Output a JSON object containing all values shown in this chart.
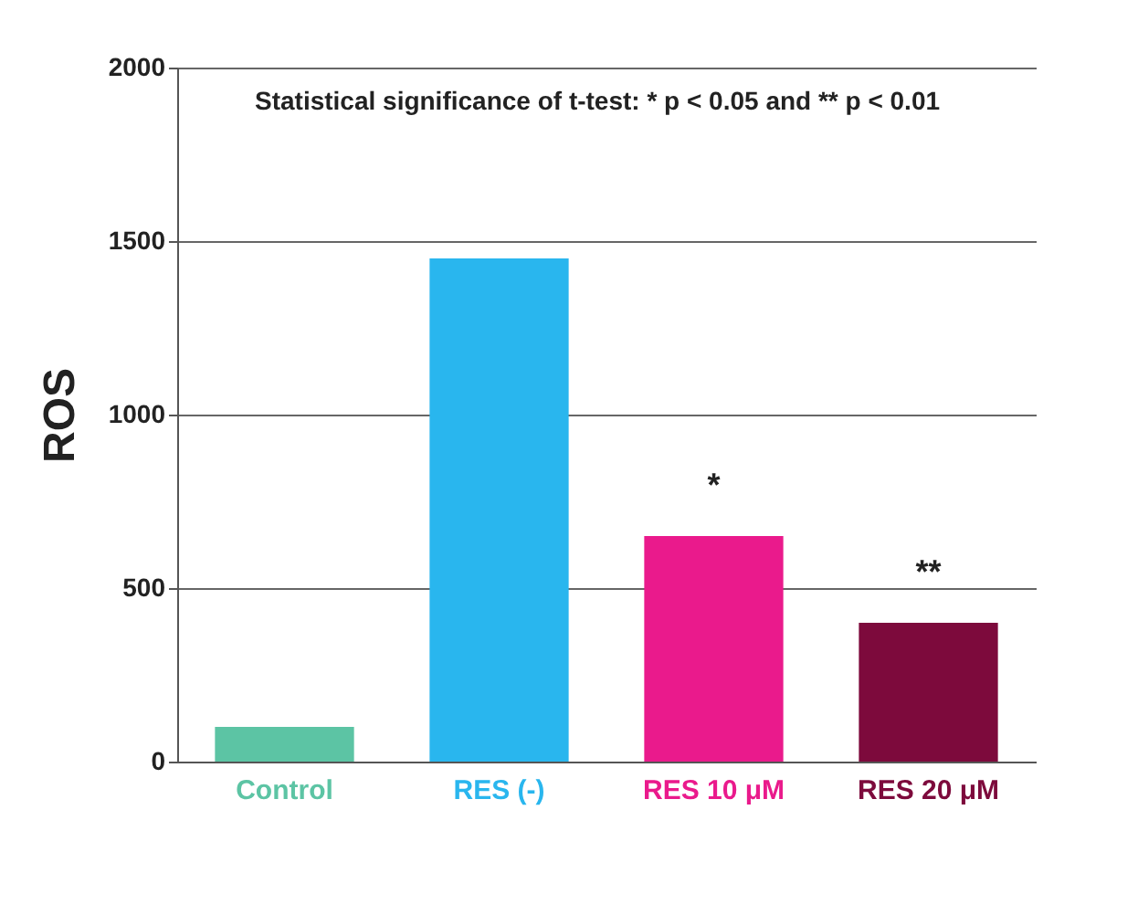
{
  "chart_data": {
    "type": "bar",
    "categories": [
      "Control",
      "RES (-)",
      "RES 10 μM",
      "RES 20 μM"
    ],
    "values": [
      100,
      1450,
      650,
      400
    ],
    "colors": [
      "#5cc4a4",
      "#29b6ee",
      "#ea1a8c",
      "#7d0a3c"
    ],
    "ylabel": "ROS",
    "ylim": [
      0,
      2000
    ],
    "yticks": [
      0,
      500,
      1000,
      1500,
      2000
    ],
    "grid": "y",
    "annotations": [
      "Statistical significance of t-test: * p < 0.05 and ** p < 0.01",
      {
        "text": "*",
        "x": "RES 10 μM",
        "y": 650
      },
      {
        "text": "**",
        "x": "RES 20 μM",
        "y": 400
      }
    ]
  }
}
